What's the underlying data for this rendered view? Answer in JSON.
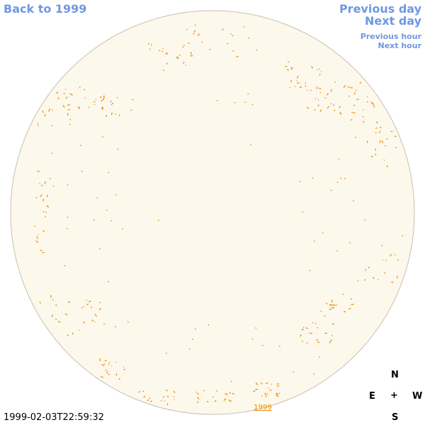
{
  "nav": {
    "back_label": "Back to 1999",
    "prev_day_label": "Previous day",
    "next_day_label": "Next day",
    "prev_hour_label": "Previous hour",
    "next_hour_label": "Next hour"
  },
  "timestamp": "1999-02-03T22:59:32",
  "disk": {
    "year_label": "1999",
    "fill_color": "#fdf8ec",
    "border_color": "#c8c0b0",
    "feature_color": "#e88a00"
  },
  "compass": {
    "north": "N",
    "east": "E",
    "center": "+",
    "west": "W",
    "south": "S"
  },
  "colors": {
    "link": "#6f98e3",
    "text": "#000000"
  }
}
